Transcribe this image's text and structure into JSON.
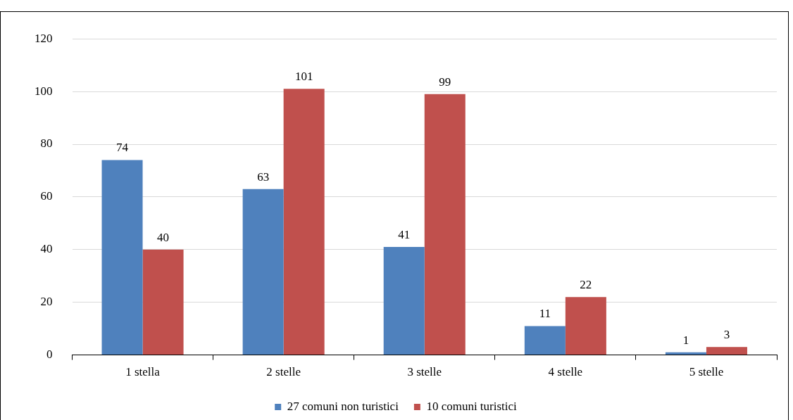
{
  "chart_data": {
    "type": "bar",
    "categories": [
      "1 stella",
      "2 stelle",
      "3 stelle",
      "4 stelle",
      "5 stelle"
    ],
    "series": [
      {
        "name": "27 comuni non turistici",
        "color": "#4f81bd",
        "values": [
          74,
          63,
          41,
          11,
          1
        ]
      },
      {
        "name": "10 comuni turistici",
        "color": "#c0504d",
        "values": [
          40,
          101,
          99,
          22,
          3
        ]
      }
    ],
    "ylim": [
      0,
      120
    ],
    "yticks": [
      0,
      20,
      40,
      60,
      80,
      100,
      120
    ],
    "grid": "y",
    "legend": "bottom",
    "data_labels": true
  }
}
